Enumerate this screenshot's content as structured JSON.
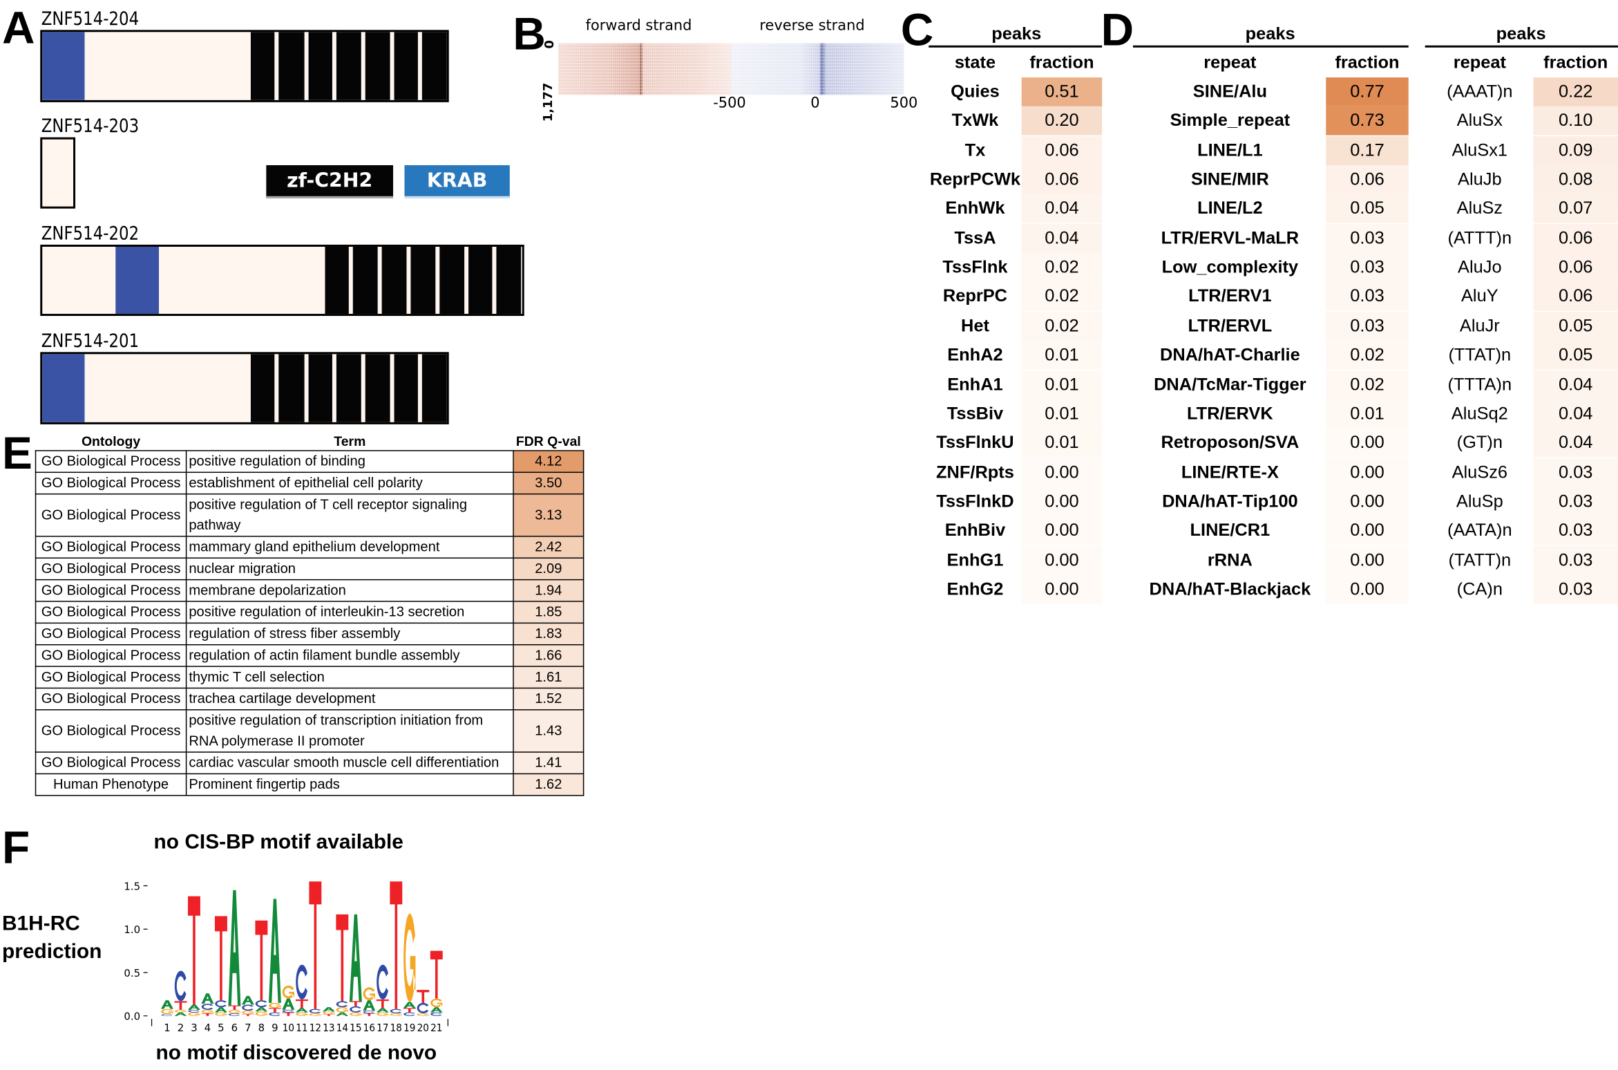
{
  "panels": {
    "A": "A",
    "B": "B",
    "C": "C",
    "D": "D",
    "E": "E",
    "F": "F"
  },
  "panelA": {
    "isoforms": [
      {
        "name": "ZNF514-204",
        "krab": true,
        "zf_repeats": 8
      },
      {
        "name": "ZNF514-203",
        "krab": false,
        "zf_repeats": 0
      },
      {
        "name": "ZNF514-202",
        "krab": true,
        "zf_repeats": 8
      },
      {
        "name": "ZNF514-201",
        "krab": true,
        "zf_repeats": 8
      }
    ],
    "legend": {
      "zf": "zf-C2H2",
      "krab": "KRAB"
    },
    "colors": {
      "krab_domain": "#3a53a4",
      "zf_domain": "#050505",
      "background": "#fff6f0",
      "krab_legend": "#2878bd"
    }
  },
  "panelB": {
    "forward_label": "forward strand",
    "reverse_label": "reverse strand",
    "y_top": "0",
    "y_bottom": "1,177",
    "x_ticks": [
      "-500",
      "0",
      "500"
    ],
    "colors": {
      "forward": "#c0604f",
      "reverse": "#5b66a8"
    }
  },
  "panelC": {
    "peaks": "peaks",
    "col_state": "state",
    "col_fraction": "fraction",
    "rows": [
      [
        "Quies",
        "0.51"
      ],
      [
        "TxWk",
        "0.20"
      ],
      [
        "Tx",
        "0.06"
      ],
      [
        "ReprPCWk",
        "0.06"
      ],
      [
        "EnhWk",
        "0.04"
      ],
      [
        "TssA",
        "0.04"
      ],
      [
        "TssFlnk",
        "0.02"
      ],
      [
        "ReprPC",
        "0.02"
      ],
      [
        "Het",
        "0.02"
      ],
      [
        "EnhA2",
        "0.01"
      ],
      [
        "EnhA1",
        "0.01"
      ],
      [
        "TssBiv",
        "0.01"
      ],
      [
        "TssFlnkU",
        "0.01"
      ],
      [
        "ZNF/Rpts",
        "0.00"
      ],
      [
        "TssFlnkD",
        "0.00"
      ],
      [
        "EnhBiv",
        "0.00"
      ],
      [
        "EnhG1",
        "0.00"
      ],
      [
        "EnhG2",
        "0.00"
      ]
    ]
  },
  "panelD": {
    "peaks": "peaks",
    "col_repeat": "repeat",
    "col_fraction": "fraction",
    "rows": [
      [
        "SINE/Alu",
        "0.77"
      ],
      [
        "Simple_repeat",
        "0.73"
      ],
      [
        "LINE/L1",
        "0.17"
      ],
      [
        "SINE/MIR",
        "0.06"
      ],
      [
        "LINE/L2",
        "0.05"
      ],
      [
        "LTR/ERVL-MaLR",
        "0.03"
      ],
      [
        "Low_complexity",
        "0.03"
      ],
      [
        "LTR/ERV1",
        "0.03"
      ],
      [
        "LTR/ERVL",
        "0.03"
      ],
      [
        "DNA/hAT-Charlie",
        "0.02"
      ],
      [
        "DNA/TcMar-Tigger",
        "0.02"
      ],
      [
        "LTR/ERVK",
        "0.01"
      ],
      [
        "Retroposon/SVA",
        "0.00"
      ],
      [
        "LINE/RTE-X",
        "0.00"
      ],
      [
        "DNA/hAT-Tip100",
        "0.00"
      ],
      [
        "LINE/CR1",
        "0.00"
      ],
      [
        "rRNA",
        "0.00"
      ],
      [
        "DNA/hAT-Blackjack",
        "0.00"
      ]
    ],
    "peaks2": "peaks",
    "col_repeat2": "repeat",
    "col_fraction2": "fraction",
    "rows2": [
      [
        "(AAAT)n",
        "0.22"
      ],
      [
        "AluSx",
        "0.10"
      ],
      [
        "AluSx1",
        "0.09"
      ],
      [
        "AluJb",
        "0.08"
      ],
      [
        "AluSz",
        "0.07"
      ],
      [
        "(ATTT)n",
        "0.06"
      ],
      [
        "AluJo",
        "0.06"
      ],
      [
        "AluY",
        "0.06"
      ],
      [
        "AluJr",
        "0.05"
      ],
      [
        "(TTAT)n",
        "0.05"
      ],
      [
        "(TTTA)n",
        "0.04"
      ],
      [
        "AluSq2",
        "0.04"
      ],
      [
        "(GT)n",
        "0.04"
      ],
      [
        "AluSz6",
        "0.03"
      ],
      [
        "AluSp",
        "0.03"
      ],
      [
        "(AATA)n",
        "0.03"
      ],
      [
        "(TATT)n",
        "0.03"
      ],
      [
        "(CA)n",
        "0.03"
      ]
    ]
  },
  "panelE": {
    "headers": [
      "Ontology",
      "Term",
      "FDR Q-val"
    ],
    "rows": [
      [
        "GO Biological Process",
        "positive regulation of binding",
        "4.12"
      ],
      [
        "GO Biological Process",
        "establishment of epithelial cell polarity",
        "3.50"
      ],
      [
        "GO Biological Process",
        "positive regulation of T cell receptor signaling pathway",
        "3.13"
      ],
      [
        "GO Biological Process",
        "mammary gland epithelium development",
        "2.42"
      ],
      [
        "GO Biological Process",
        "nuclear migration",
        "2.09"
      ],
      [
        "GO Biological Process",
        "membrane depolarization",
        "1.94"
      ],
      [
        "GO Biological Process",
        "positive regulation of interleukin-13 secretion",
        "1.85"
      ],
      [
        "GO Biological Process",
        "regulation of stress fiber assembly",
        "1.83"
      ],
      [
        "GO Biological Process",
        "regulation of actin filament bundle assembly",
        "1.66"
      ],
      [
        "GO Biological Process",
        "thymic T cell selection",
        "1.61"
      ],
      [
        "GO Biological Process",
        "trachea cartilage development",
        "1.52"
      ],
      [
        "GO Biological Process",
        "positive regulation of transcription initiation from RNA polymerase II promoter",
        "1.43"
      ],
      [
        "GO Biological Process",
        "cardiac vascular smooth muscle cell differentiation",
        "1.41"
      ],
      [
        "Human Phenotype",
        "Prominent fingertip pads",
        "1.62"
      ]
    ]
  },
  "panelF": {
    "cisbp": "no CIS-BP motif available",
    "row_label_1": "B1H-RC",
    "row_label_2": "prediction",
    "denovo": "no motif discovered de novo"
  },
  "chart_data": {
    "type": "sequence-logo",
    "ylim": [
      0,
      1.5
    ],
    "y_ticks": [
      "0.0",
      "0.5",
      "1.0",
      "1.5"
    ],
    "x_ticks": [
      "1",
      "2",
      "3",
      "4",
      "5",
      "6",
      "7",
      "8",
      "9",
      "10",
      "11",
      "12",
      "13",
      "14",
      "15",
      "16",
      "17",
      "18",
      "19",
      "20",
      "21"
    ],
    "letter_colors": {
      "A": "#138a3a",
      "C": "#2e4aa6",
      "G": "#f5a623",
      "T": "#ee2126"
    },
    "positions": [
      [
        [
          "C",
          0.02
        ],
        [
          "G",
          0.06
        ],
        [
          "A",
          0.1
        ]
      ],
      [
        [
          "A",
          0.04
        ],
        [
          "G",
          0.03
        ],
        [
          "T",
          0.1
        ],
        [
          "C",
          0.35
        ]
      ],
      [
        [
          "G",
          0.04
        ],
        [
          "C",
          0.03
        ],
        [
          "A",
          0.06
        ],
        [
          "T",
          1.25
        ]
      ],
      [
        [
          "T",
          0.03
        ],
        [
          "G",
          0.04
        ],
        [
          "C",
          0.07
        ],
        [
          "A",
          0.12
        ]
      ],
      [
        [
          "G",
          0.04
        ],
        [
          "A",
          0.06
        ],
        [
          "C",
          0.08
        ],
        [
          "T",
          0.97
        ]
      ],
      [
        [
          "C",
          0.03
        ],
        [
          "G",
          0.04
        ],
        [
          "T",
          0.05
        ],
        [
          "A",
          1.33
        ]
      ],
      [
        [
          "T",
          0.02
        ],
        [
          "G",
          0.04
        ],
        [
          "C",
          0.07
        ],
        [
          "A",
          0.1
        ]
      ],
      [
        [
          "G",
          0.05
        ],
        [
          "A",
          0.05
        ],
        [
          "C",
          0.08
        ],
        [
          "T",
          0.92
        ]
      ],
      [
        [
          "C",
          0.04
        ],
        [
          "T",
          0.05
        ],
        [
          "G",
          0.06
        ],
        [
          "A",
          1.2
        ]
      ],
      [
        [
          "T",
          0.04
        ],
        [
          "C",
          0.03
        ],
        [
          "A",
          0.13
        ],
        [
          "G",
          0.15
        ]
      ],
      [
        [
          "G",
          0.04
        ],
        [
          "A",
          0.05
        ],
        [
          "T",
          0.1
        ],
        [
          "C",
          0.4
        ]
      ],
      [
        [
          "G",
          0.03
        ],
        [
          "C",
          0.05
        ],
        [
          "T",
          1.47
        ]
      ],
      [
        [
          "T",
          0.02
        ],
        [
          "G",
          0.03
        ],
        [
          "A",
          0.05
        ]
      ],
      [
        [
          "A",
          0.04
        ],
        [
          "G",
          0.06
        ],
        [
          "C",
          0.07
        ],
        [
          "T",
          1.0
        ]
      ],
      [
        [
          "G",
          0.04
        ],
        [
          "C",
          0.07
        ],
        [
          "T",
          0.06
        ],
        [
          "A",
          1.0
        ]
      ],
      [
        [
          "T",
          0.03
        ],
        [
          "C",
          0.03
        ],
        [
          "A",
          0.12
        ],
        [
          "G",
          0.15
        ]
      ],
      [
        [
          "G",
          0.04
        ],
        [
          "A",
          0.05
        ],
        [
          "T",
          0.1
        ],
        [
          "C",
          0.4
        ]
      ],
      [
        [
          "G",
          0.03
        ],
        [
          "C",
          0.05
        ],
        [
          "T",
          1.47
        ]
      ],
      [
        [
          "C",
          0.04
        ],
        [
          "T",
          0.05
        ],
        [
          "A",
          0.07
        ],
        [
          "G",
          1.02
        ]
      ],
      [
        [
          "G",
          0.03
        ],
        [
          "C",
          0.12
        ],
        [
          "T",
          0.15
        ]
      ],
      [
        [
          "C",
          0.04
        ],
        [
          "A",
          0.06
        ],
        [
          "G",
          0.1
        ],
        [
          "T",
          0.55
        ]
      ]
    ]
  }
}
